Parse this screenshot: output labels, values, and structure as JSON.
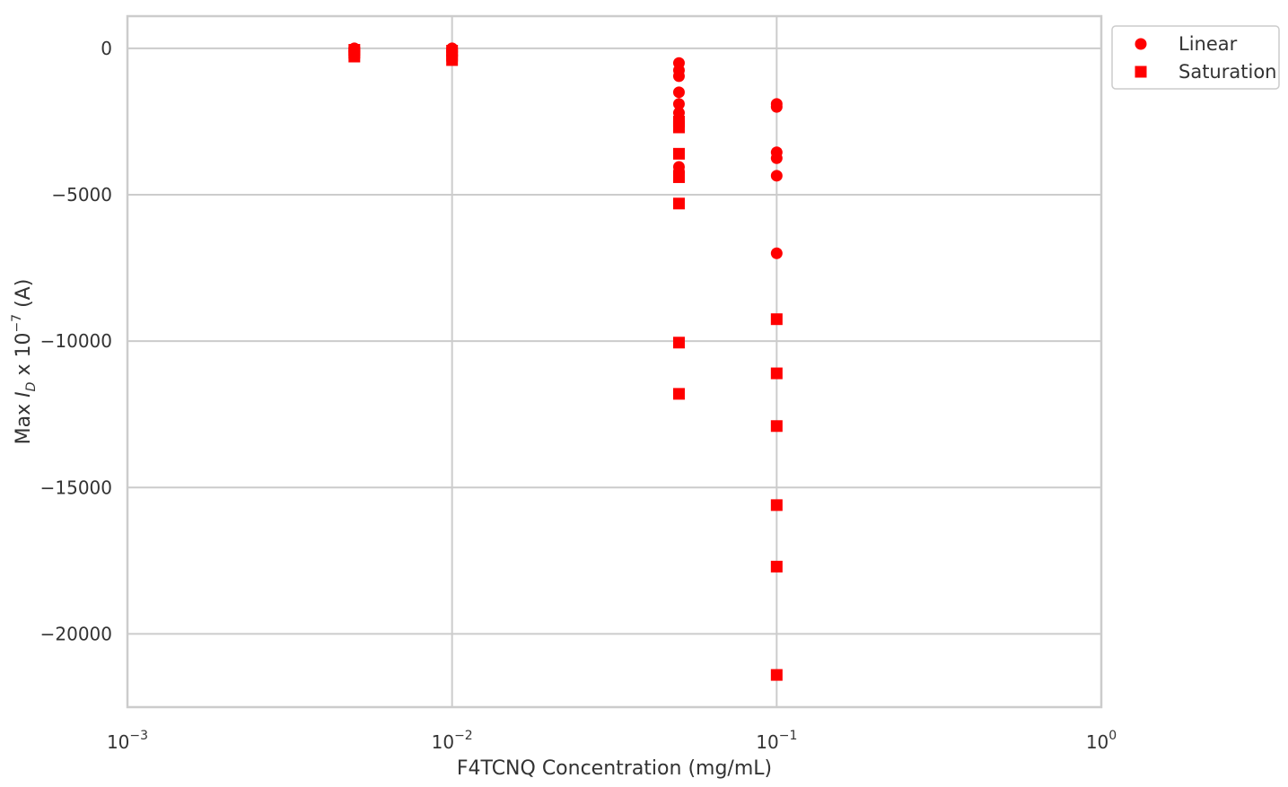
{
  "chart_data": {
    "type": "scatter",
    "title": "",
    "xlabel": "F4TCNQ Concentration (mg/mL)",
    "ylabel_parts": {
      "prefix": "Max ",
      "var": "I",
      "sub": "D",
      "mid": " x 10",
      "exp": "−7",
      "suffix": " (A)"
    },
    "x_scale": "log",
    "xlim": [
      0.001,
      1
    ],
    "ylim": [
      -22500,
      1100
    ],
    "x_ticks": [
      {
        "value": 0.001,
        "base": "10",
        "exp": "−3"
      },
      {
        "value": 0.01,
        "base": "10",
        "exp": "−2"
      },
      {
        "value": 0.1,
        "base": "10",
        "exp": "−1"
      },
      {
        "value": 1,
        "base": "10",
        "exp": "0"
      }
    ],
    "y_ticks": [
      {
        "value": 0,
        "label": "0"
      },
      {
        "value": -5000,
        "label": "−5000"
      },
      {
        "value": -10000,
        "label": "−10000"
      },
      {
        "value": -15000,
        "label": "−15000"
      },
      {
        "value": -20000,
        "label": "−20000"
      }
    ],
    "grid": true,
    "legend_position": "outside-top-right",
    "series": [
      {
        "name": "Linear",
        "marker": "circle",
        "color": "#ff0000",
        "points": [
          [
            0.005,
            0
          ],
          [
            0.005,
            -50
          ],
          [
            0.005,
            -100
          ],
          [
            0.01,
            0
          ],
          [
            0.01,
            -50
          ],
          [
            0.01,
            -120
          ],
          [
            0.05,
            -500
          ],
          [
            0.05,
            -750
          ],
          [
            0.05,
            -950
          ],
          [
            0.05,
            -1500
          ],
          [
            0.05,
            -1900
          ],
          [
            0.05,
            -2200
          ],
          [
            0.05,
            -2500
          ],
          [
            0.05,
            -4050
          ],
          [
            0.05,
            -4200
          ],
          [
            0.1,
            -1900
          ],
          [
            0.1,
            -2000
          ],
          [
            0.1,
            -3550
          ],
          [
            0.1,
            -3750
          ],
          [
            0.1,
            -4350
          ],
          [
            0.1,
            -7000
          ]
        ]
      },
      {
        "name": "Saturation",
        "marker": "square",
        "color": "#ff0000",
        "points": [
          [
            0.005,
            -50
          ],
          [
            0.005,
            -150
          ],
          [
            0.005,
            -280
          ],
          [
            0.01,
            -80
          ],
          [
            0.01,
            -250
          ],
          [
            0.01,
            -400
          ],
          [
            0.05,
            -2500
          ],
          [
            0.05,
            -2700
          ],
          [
            0.05,
            -3600
          ],
          [
            0.05,
            -4400
          ],
          [
            0.05,
            -5300
          ],
          [
            0.05,
            -10050
          ],
          [
            0.05,
            -11800
          ],
          [
            0.1,
            -9250
          ],
          [
            0.1,
            -11100
          ],
          [
            0.1,
            -12900
          ],
          [
            0.1,
            -15600
          ],
          [
            0.1,
            -17700
          ],
          [
            0.1,
            -21400
          ]
        ]
      }
    ]
  }
}
